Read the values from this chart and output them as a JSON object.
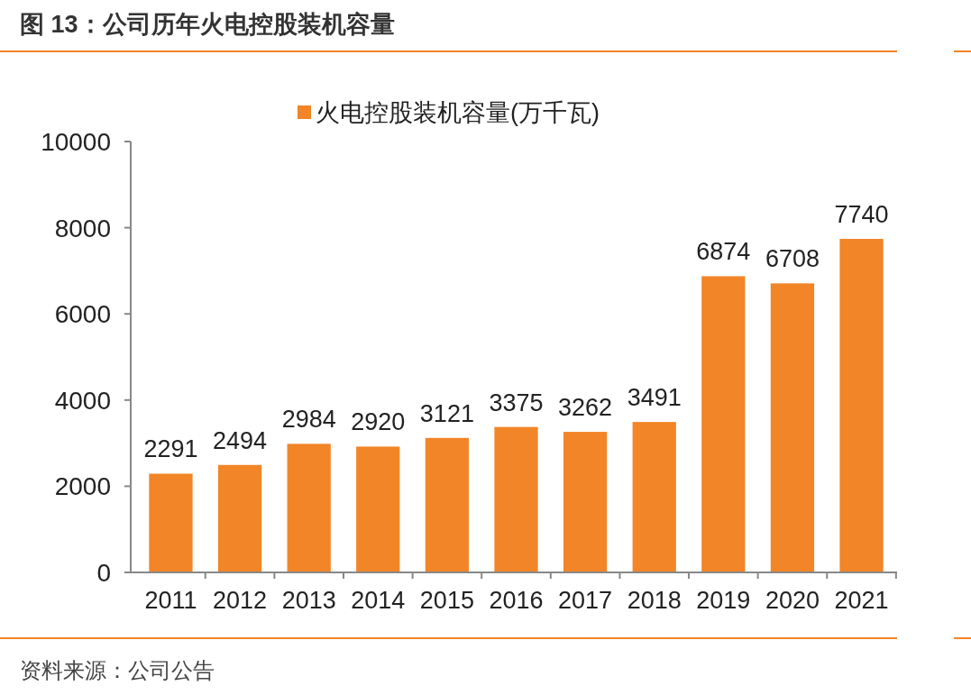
{
  "chart_data": {
    "type": "bar",
    "title": "图 13：公司历年火电控股装机容量",
    "annotations": [
      "资料来源：公司公告"
    ],
    "categories": [
      "2011",
      "2012",
      "2013",
      "2014",
      "2015",
      "2016",
      "2017",
      "2018",
      "2019",
      "2020",
      "2021"
    ],
    "series": [
      {
        "name": "火电控股装机容量(万千瓦)",
        "color": "#f28527",
        "values": [
          2291,
          2494,
          2984,
          2920,
          3121,
          3375,
          3262,
          3491,
          6874,
          6708,
          7740
        ]
      }
    ],
    "ylim": [
      0,
      10000
    ],
    "yticks": [
      0,
      2000,
      4000,
      6000,
      8000,
      10000
    ],
    "grid": false,
    "legend": "top",
    "data_labels": true
  }
}
